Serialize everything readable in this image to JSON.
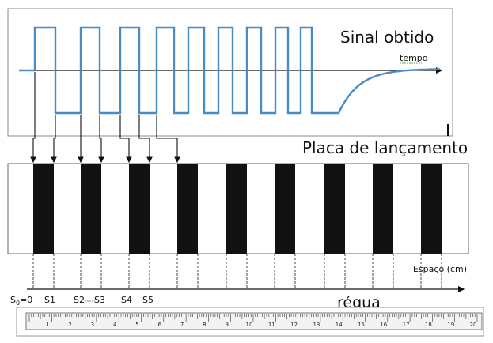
{
  "signal": {
    "title": "Sinal obtido",
    "axis_label": "tempo"
  },
  "plate": {
    "title": "Placa de lançamento",
    "space_label": "Espaço (cm)"
  },
  "positions": {
    "s0_base": "S",
    "s0_sub": "0",
    "s0_rest": "=0",
    "s1": "S1",
    "s2": "S2",
    "s3": "S3",
    "s4": "S4",
    "s5": "S5"
  },
  "ruler": {
    "title": "régua",
    "numbers": [
      "1",
      "2",
      "3",
      "4",
      "5",
      "6",
      "7",
      "8",
      "9",
      "10",
      "11",
      "12",
      "13",
      "14",
      "15",
      "16",
      "17",
      "18",
      "19",
      "20"
    ]
  },
  "colors": {
    "signal": "#4a8bc4",
    "ink": "#111111",
    "frame": "#888888"
  }
}
